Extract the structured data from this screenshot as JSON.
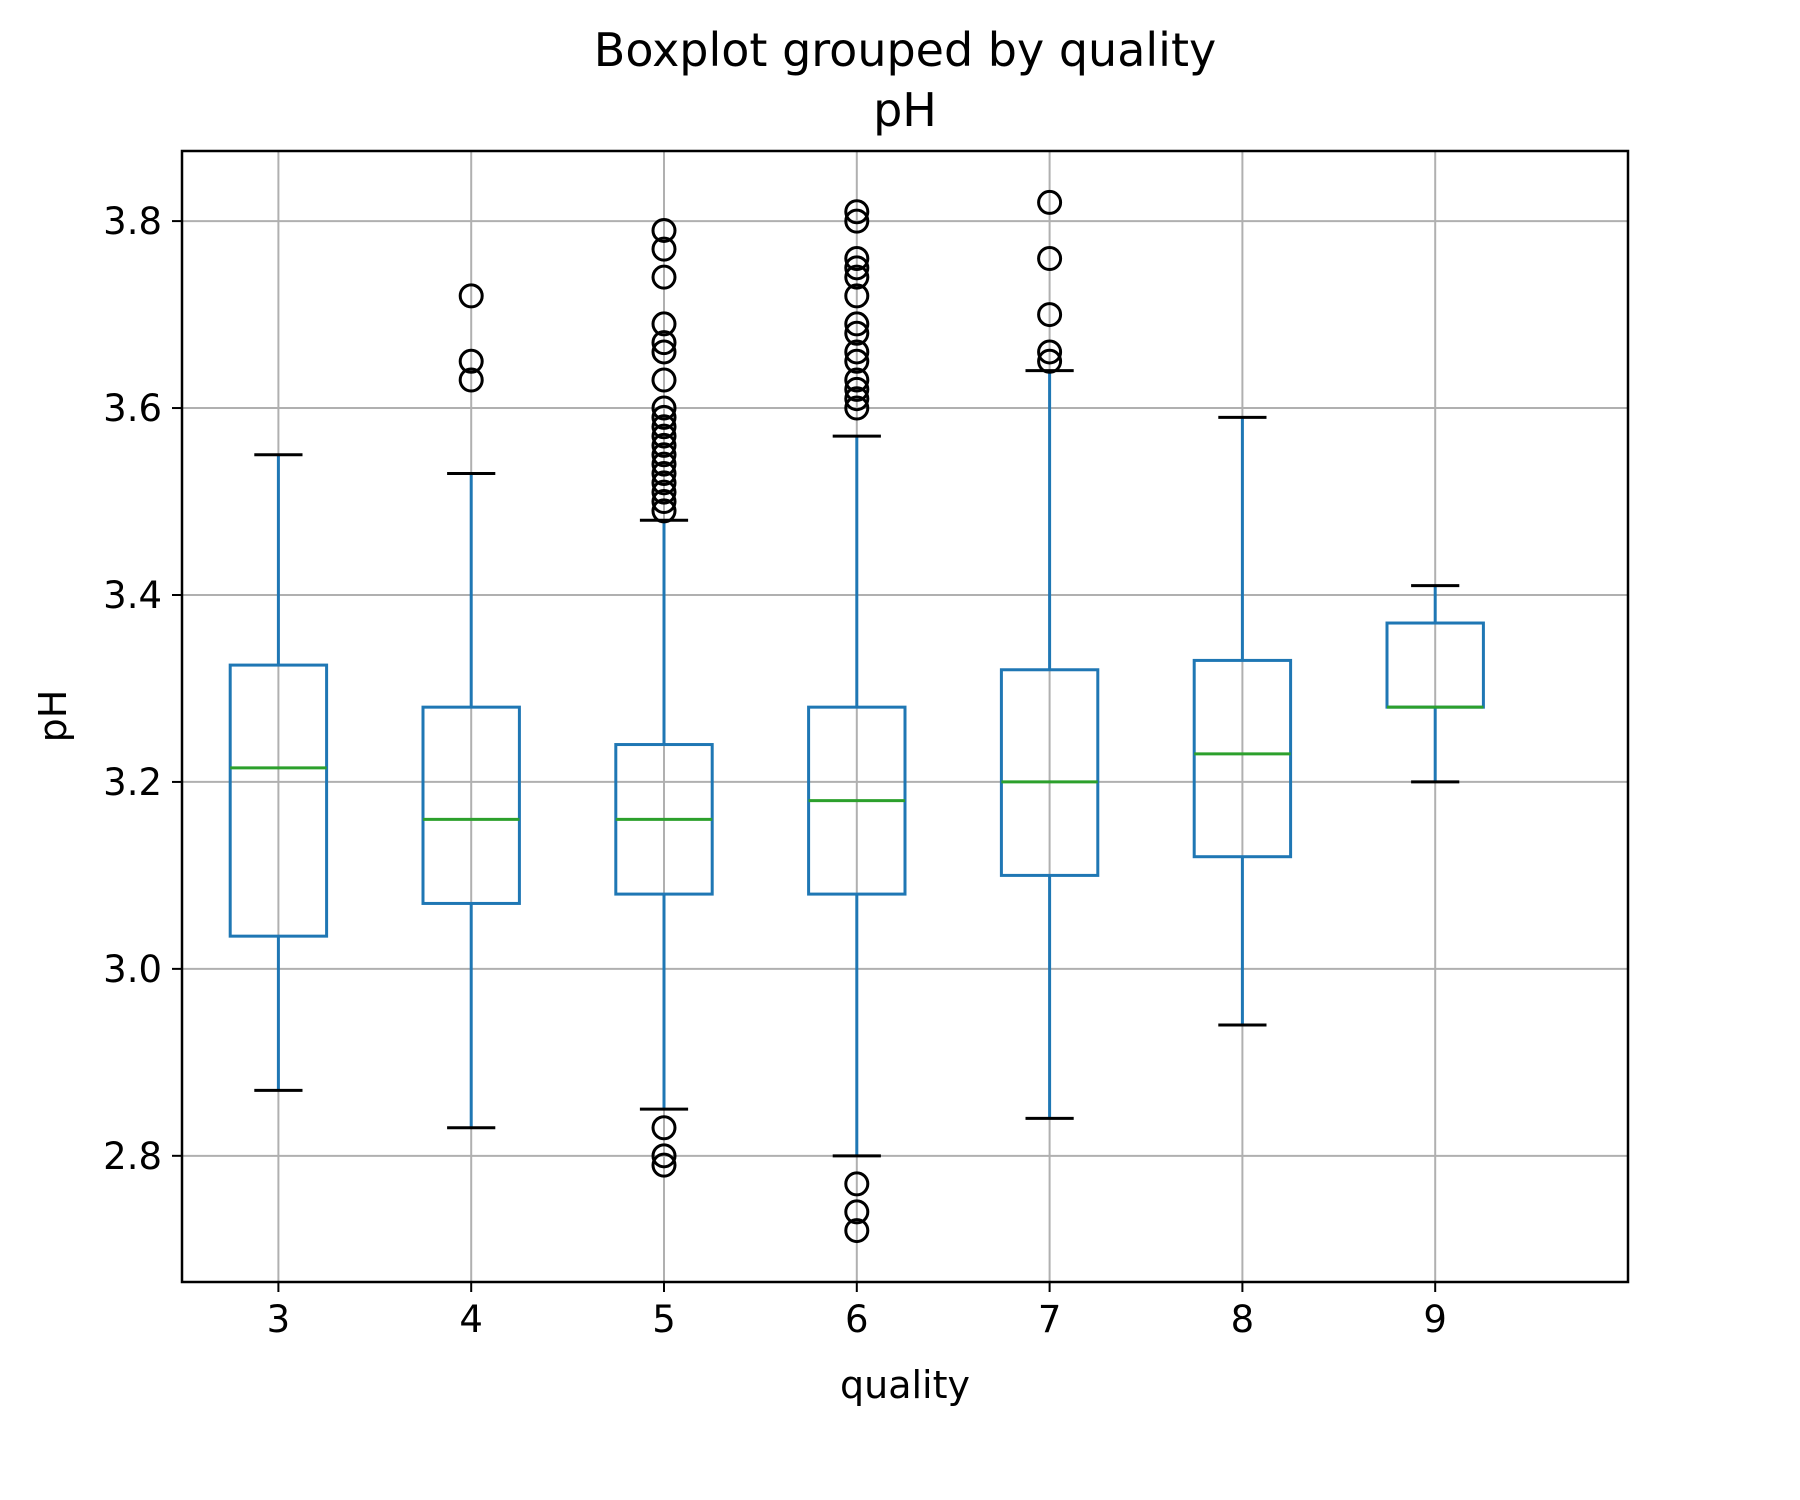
{
  "chart_data": {
    "type": "box",
    "title": "Boxplot grouped by quality",
    "subtitle": "pH",
    "xlabel": "quality",
    "ylabel": "pH",
    "categories": [
      "3",
      "4",
      "5",
      "6",
      "7",
      "8",
      "9"
    ],
    "ylim": [
      2.665,
      3.875
    ],
    "yticks": [
      2.8,
      3.0,
      3.2,
      3.4,
      3.6,
      3.8
    ],
    "ytick_labels": [
      "2.8",
      "3.0",
      "3.2",
      "3.4",
      "3.6",
      "3.8"
    ],
    "grid": true,
    "colors": {
      "box": "#1f77b4",
      "median": "#2ca02c",
      "caps": "#000000",
      "fliers": "#000000",
      "grid": "#b0b0b0"
    },
    "boxes": [
      {
        "category": "3",
        "whisker_low": 2.87,
        "q1": 3.035,
        "median": 3.215,
        "q3": 3.325,
        "whisker_high": 3.55,
        "fliers": []
      },
      {
        "category": "4",
        "whisker_low": 2.83,
        "q1": 3.07,
        "median": 3.16,
        "q3": 3.28,
        "whisker_high": 3.53,
        "fliers": [
          3.63,
          3.65,
          3.72
        ]
      },
      {
        "category": "5",
        "whisker_low": 2.85,
        "q1": 3.08,
        "median": 3.16,
        "q3": 3.24,
        "whisker_high": 3.48,
        "fliers": [
          2.79,
          2.8,
          2.83,
          3.49,
          3.5,
          3.51,
          3.52,
          3.53,
          3.54,
          3.55,
          3.56,
          3.57,
          3.58,
          3.59,
          3.6,
          3.63,
          3.66,
          3.67,
          3.69,
          3.74,
          3.77,
          3.79
        ]
      },
      {
        "category": "6",
        "whisker_low": 2.8,
        "q1": 3.08,
        "median": 3.18,
        "q3": 3.28,
        "whisker_high": 3.57,
        "fliers": [
          2.72,
          2.74,
          2.77,
          3.6,
          3.61,
          3.62,
          3.63,
          3.65,
          3.66,
          3.68,
          3.69,
          3.72,
          3.74,
          3.75,
          3.76,
          3.8,
          3.81
        ]
      },
      {
        "category": "7",
        "whisker_low": 2.84,
        "q1": 3.1,
        "median": 3.2,
        "q3": 3.32,
        "whisker_high": 3.64,
        "fliers": [
          3.65,
          3.66,
          3.7,
          3.76,
          3.82
        ]
      },
      {
        "category": "8",
        "whisker_low": 2.94,
        "q1": 3.12,
        "median": 3.23,
        "q3": 3.33,
        "whisker_high": 3.59,
        "fliers": []
      },
      {
        "category": "9",
        "whisker_low": 3.2,
        "q1": 3.28,
        "median": 3.28,
        "q3": 3.37,
        "whisker_high": 3.41,
        "fliers": []
      }
    ]
  }
}
